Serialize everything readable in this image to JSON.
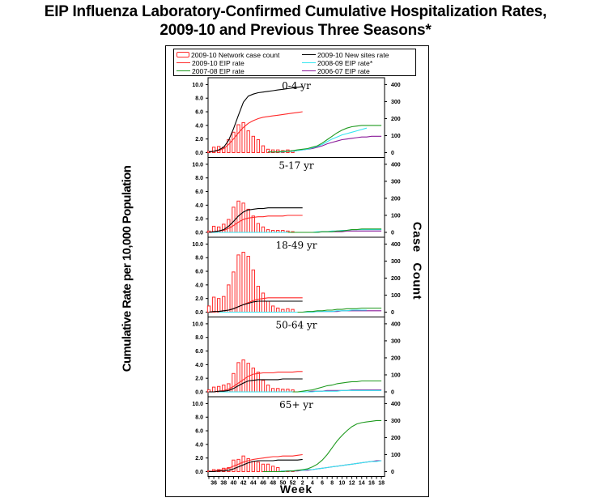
{
  "title_line1": "EIP Influenza Laboratory-Confirmed Cumulative Hospitalization Rates,",
  "title_line2": "2009-10 and Previous Three Seasons*",
  "legend": [
    {
      "label": "2009-10 Network case count",
      "color": "#ff2a2a",
      "kind": "box"
    },
    {
      "label": "2009-10 New sites rate",
      "color": "#000000",
      "kind": "line"
    },
    {
      "label": "2009-10 EIP rate",
      "color": "#ff2a2a",
      "kind": "line"
    },
    {
      "label": "2008-09 EIP rate*",
      "color": "#33e6f0",
      "kind": "line"
    },
    {
      "label": "2007-08 EIP rate",
      "color": "#1f9a1f",
      "kind": "line"
    },
    {
      "label": "2006-07 EIP rate",
      "color": "#8a1a9a",
      "kind": "line"
    }
  ],
  "chart_data": {
    "type": "bar+line",
    "title": "EIP Influenza Laboratory-Confirmed Cumulative Hospitalization Rates, 2009-10 and Previous Three Seasons*",
    "xlabel": "Week",
    "ylabel": "Cumulative Rate per 10,000 Population",
    "ylabel_right": "Case  Count",
    "weeks": [
      35,
      36,
      37,
      38,
      39,
      40,
      41,
      42,
      43,
      44,
      45,
      46,
      47,
      48,
      49,
      50,
      51,
      52,
      1,
      2,
      3,
      4,
      5,
      6,
      7,
      8,
      9,
      10,
      11,
      12,
      13,
      14,
      15,
      16,
      17,
      18
    ],
    "x_tick_labels": [
      "36",
      "38",
      "40",
      "42",
      "44",
      "46",
      "48",
      "50",
      "52",
      "2",
      "4",
      "6",
      "8",
      "10",
      "12",
      "14",
      "16",
      "18"
    ],
    "y_ticks_left": [
      "0.0",
      "2.0",
      "4.0",
      "6.0",
      "8.0",
      "10.0"
    ],
    "y_ticks_right": [
      "0",
      "100",
      "200",
      "300",
      "400"
    ],
    "ylim_left": [
      0,
      11
    ],
    "ylim_right": [
      0,
      440
    ],
    "panels": [
      {
        "name": "0-4 yr",
        "case_count": [
          8,
          32,
          36,
          32,
          76,
          120,
          164,
          176,
          128,
          96,
          76,
          40,
          20,
          16,
          16,
          12,
          16,
          12
        ],
        "new_sites_rate": [
          0.1,
          0.2,
          0.4,
          0.8,
          1.8,
          3.5,
          5.5,
          7.4,
          8.3,
          8.6,
          8.8,
          8.9,
          9.0,
          9.1,
          9.2,
          9.3,
          9.4,
          9.5,
          9.6,
          9.7
        ],
        "eip_2009_10": [
          0.1,
          0.2,
          0.3,
          0.6,
          1.2,
          2.0,
          2.9,
          3.7,
          4.3,
          4.7,
          5.0,
          5.2,
          5.3,
          5.4,
          5.5,
          5.6,
          5.7,
          5.8,
          5.9,
          6.0
        ],
        "eip_2008_09": [
          null,
          null,
          null,
          null,
          null,
          null,
          null,
          null,
          null,
          null,
          null,
          null,
          null,
          null,
          0.1,
          0.1,
          0.2,
          0.2,
          0.3,
          0.4,
          0.5,
          0.7,
          0.9,
          1.2,
          1.6,
          2.0,
          2.3,
          2.6,
          2.8,
          3.0,
          3.2,
          3.4,
          3.6
        ],
        "eip_2007_08": [
          null,
          null,
          null,
          null,
          null,
          null,
          null,
          null,
          null,
          null,
          null,
          null,
          0.1,
          0.1,
          0.1,
          0.2,
          0.2,
          0.3,
          0.4,
          0.5,
          0.6,
          0.8,
          1.0,
          1.4,
          1.9,
          2.4,
          2.9,
          3.3,
          3.6,
          3.8,
          3.9,
          4.0,
          4.0,
          4.0,
          4.0,
          4.0
        ],
        "eip_2006_07": [
          null,
          null,
          null,
          null,
          null,
          null,
          null,
          null,
          null,
          null,
          null,
          null,
          0.1,
          0.1,
          0.1,
          0.1,
          0.2,
          0.2,
          0.3,
          0.4,
          0.5,
          0.6,
          0.8,
          1.0,
          1.3,
          1.5,
          1.7,
          1.9,
          2.0,
          2.1,
          2.2,
          2.3,
          2.3,
          2.4,
          2.4,
          2.4
        ]
      },
      {
        "name": "5-17 yr",
        "case_count": [
          8,
          36,
          32,
          48,
          76,
          148,
          184,
          172,
          136,
          96,
          52,
          32,
          16,
          12,
          12,
          12,
          8,
          4
        ],
        "new_sites_rate": [
          0.0,
          0.1,
          0.2,
          0.4,
          0.9,
          1.6,
          2.4,
          3.0,
          3.3,
          3.4,
          3.5,
          3.5,
          3.6,
          3.6,
          3.6,
          3.6,
          3.6,
          3.6,
          3.6,
          3.6
        ],
        "eip_2009_10": [
          0.0,
          0.1,
          0.2,
          0.3,
          0.6,
          1.0,
          1.5,
          1.9,
          2.1,
          2.2,
          2.3,
          2.3,
          2.4,
          2.4,
          2.4,
          2.4,
          2.5,
          2.5,
          2.5,
          2.5
        ],
        "eip_2008_09": [
          0.0,
          0.0,
          0.0,
          0.0,
          0.0,
          0.0,
          0.0,
          0.0,
          0.0,
          0.0,
          0.0,
          0.0,
          0.0,
          0.0,
          0.0,
          0.0,
          0.0,
          0.0,
          0.0,
          0.0,
          0.0,
          0.0,
          0.1,
          0.1,
          0.1,
          0.2,
          0.2,
          0.3,
          0.3,
          0.4,
          0.4,
          0.4,
          0.4,
          0.4,
          0.4,
          0.4
        ],
        "eip_2007_08": [
          null,
          null,
          null,
          null,
          null,
          null,
          null,
          null,
          null,
          null,
          null,
          null,
          null,
          null,
          null,
          null,
          0.0,
          0.0,
          0.0,
          0.0,
          0.0,
          0.0,
          0.0,
          0.1,
          0.1,
          0.1,
          0.2,
          0.2,
          0.3,
          0.4,
          0.4,
          0.5,
          0.5,
          0.5,
          0.5,
          0.5
        ],
        "eip_2006_07": [
          null,
          null,
          null,
          null,
          null,
          null,
          null,
          null,
          null,
          null,
          null,
          null,
          null,
          null,
          null,
          null,
          0.0,
          0.0,
          0.0,
          0.0,
          0.0,
          0.0,
          0.0,
          0.1,
          0.1,
          0.1,
          0.1,
          0.1,
          0.2,
          0.2,
          0.2,
          0.2,
          0.2,
          0.2,
          0.2,
          0.2
        ]
      },
      {
        "name": "18-49 yr",
        "case_count": [
          36,
          88,
          80,
          92,
          160,
          236,
          336,
          352,
          328,
          248,
          152,
          112,
          64,
          36,
          24,
          16,
          20,
          16
        ],
        "new_sites_rate": [
          0.0,
          0.1,
          0.1,
          0.2,
          0.3,
          0.5,
          0.8,
          1.1,
          1.3,
          1.5,
          1.6,
          1.6,
          1.6,
          1.6,
          1.6,
          1.6,
          1.6,
          1.6,
          1.6,
          1.6
        ],
        "eip_2009_10": [
          0.0,
          0.0,
          0.1,
          0.2,
          0.3,
          0.5,
          0.8,
          1.1,
          1.4,
          1.7,
          1.9,
          2.0,
          2.1,
          2.1,
          2.1,
          2.1,
          2.1,
          2.1,
          2.1,
          2.1
        ],
        "eip_2008_09": [
          null,
          null,
          0.0,
          0.0,
          0.0,
          0.0,
          0.0,
          0.0,
          0.0,
          0.0,
          0.0,
          0.0,
          0.0,
          0.0,
          0.0,
          0.0,
          0.0,
          0.0,
          0.0,
          0.0,
          0.0,
          0.0,
          0.1,
          0.1,
          0.1,
          0.1,
          0.2,
          0.2,
          0.2,
          0.3,
          0.3,
          0.3,
          0.3
        ],
        "eip_2007_08": [
          null,
          null,
          null,
          null,
          null,
          null,
          null,
          null,
          null,
          null,
          null,
          null,
          null,
          null,
          null,
          null,
          null,
          null,
          0.0,
          0.0,
          0.1,
          0.1,
          0.2,
          0.2,
          0.3,
          0.3,
          0.4,
          0.4,
          0.5,
          0.5,
          0.5,
          0.6,
          0.6,
          0.6,
          0.6,
          0.6
        ],
        "eip_2006_07": [
          null,
          null,
          null,
          null,
          null,
          null,
          null,
          null,
          null,
          null,
          null,
          null,
          null,
          null,
          null,
          null,
          null,
          null,
          0.0,
          0.0,
          0.0,
          0.0,
          0.1,
          0.1,
          0.1,
          0.1,
          0.1,
          0.2,
          0.2,
          0.2,
          0.2,
          0.2,
          0.2,
          0.2,
          0.2,
          0.2
        ]
      },
      {
        "name": "50-64 yr",
        "case_count": [
          12,
          28,
          32,
          40,
          48,
          108,
          172,
          188,
          168,
          140,
          116,
          68,
          40,
          20,
          20,
          16,
          16,
          12
        ],
        "new_sites_rate": [
          0.0,
          0.0,
          0.1,
          0.1,
          0.2,
          0.5,
          0.9,
          1.3,
          1.6,
          1.7,
          1.8,
          1.8,
          1.8,
          1.8,
          1.8,
          1.9,
          1.9,
          1.9,
          1.9,
          1.9
        ],
        "eip_2009_10": [
          0.0,
          0.0,
          0.1,
          0.2,
          0.4,
          0.8,
          1.3,
          1.8,
          2.3,
          2.6,
          2.7,
          2.8,
          2.8,
          2.8,
          2.9,
          2.9,
          2.9,
          2.9,
          3.0,
          3.0
        ],
        "eip_2008_09": [
          null,
          null,
          0.0,
          0.0,
          0.0,
          0.0,
          0.0,
          0.0,
          0.0,
          0.0,
          0.0,
          0.0,
          0.0,
          0.0,
          0.0,
          0.0,
          0.0,
          0.0,
          0.0,
          0.0,
          0.0,
          0.0,
          0.1,
          0.1,
          0.1,
          0.1,
          0.1,
          0.2,
          0.2,
          0.2,
          0.2,
          0.2,
          0.2,
          0.2,
          0.2,
          0.2
        ],
        "eip_2007_08": [
          null,
          null,
          null,
          null,
          null,
          null,
          null,
          null,
          null,
          null,
          null,
          null,
          null,
          null,
          null,
          null,
          null,
          0.0,
          0.0,
          0.1,
          0.2,
          0.3,
          0.5,
          0.7,
          0.9,
          1.0,
          1.2,
          1.3,
          1.4,
          1.5,
          1.5,
          1.6,
          1.6,
          1.6,
          1.6,
          1.6
        ],
        "eip_2006_07": [
          null,
          null,
          null,
          null,
          null,
          null,
          null,
          null,
          null,
          null,
          null,
          null,
          null,
          null,
          null,
          null,
          null,
          null,
          0.0,
          0.0,
          0.0,
          0.1,
          0.1,
          0.1,
          0.2,
          0.2,
          0.2,
          0.2,
          0.2,
          0.3,
          0.3,
          0.3,
          0.3,
          0.3,
          0.3,
          0.3
        ]
      },
      {
        "name": "65+ yr",
        "case_count": [
          4,
          12,
          12,
          20,
          24,
          68,
          72,
          92,
          76,
          60,
          56,
          44,
          44,
          32,
          24,
          4,
          4,
          4
        ],
        "new_sites_rate": [
          0.0,
          0.0,
          0.1,
          0.1,
          0.2,
          0.4,
          0.7,
          1.0,
          1.3,
          1.5,
          1.6,
          1.6,
          1.6,
          1.6,
          1.7,
          1.7,
          1.7,
          1.7,
          1.7,
          1.8
        ],
        "eip_2009_10": [
          0.0,
          0.1,
          0.2,
          0.3,
          0.5,
          0.8,
          1.1,
          1.4,
          1.6,
          1.8,
          1.9,
          2.0,
          2.1,
          2.2,
          2.2,
          2.3,
          2.3,
          2.3,
          2.4,
          2.5
        ],
        "eip_2008_09": [
          null,
          null,
          null,
          null,
          null,
          null,
          null,
          null,
          null,
          null,
          null,
          0.0,
          0.0,
          0.0,
          0.0,
          0.1,
          0.1,
          0.1,
          0.2,
          0.2,
          0.3,
          0.3,
          0.4,
          0.5,
          0.6,
          0.7,
          0.8,
          0.9,
          1.0,
          1.1,
          1.2,
          1.3,
          1.4,
          1.5,
          1.5,
          1.6
        ],
        "eip_2007_08": [
          null,
          null,
          null,
          null,
          null,
          null,
          null,
          null,
          null,
          null,
          null,
          0.0,
          0.0,
          0.0,
          0.0,
          0.0,
          0.1,
          0.1,
          0.2,
          0.3,
          0.4,
          0.7,
          1.1,
          1.7,
          2.5,
          3.5,
          4.5,
          5.3,
          6.0,
          6.6,
          7.0,
          7.2,
          7.3,
          7.4,
          7.5,
          7.5
        ],
        "eip_2006_07": [
          null,
          null,
          null,
          null,
          null,
          null,
          null,
          null,
          null,
          null,
          null,
          0.0,
          0.0,
          0.0,
          0.0,
          0.0,
          0.1,
          0.1,
          0.1,
          0.2,
          0.2,
          0.3,
          0.4,
          0.5,
          0.6,
          0.7,
          0.8,
          0.9,
          1.0,
          1.1,
          1.2,
          1.3,
          1.4,
          1.5,
          1.6,
          1.6
        ]
      }
    ]
  }
}
